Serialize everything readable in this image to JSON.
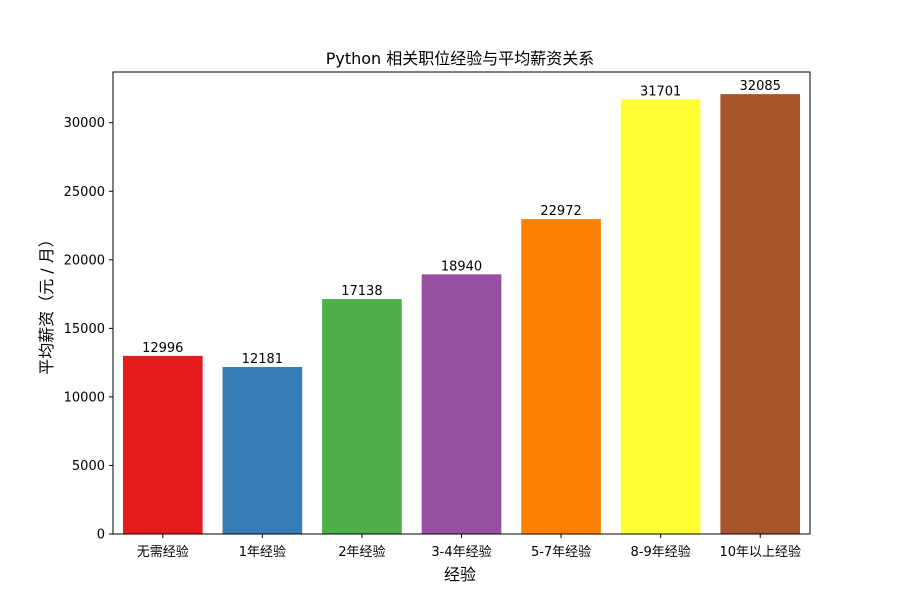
{
  "chart_data": {
    "type": "bar",
    "title": "Python 相关职位经验与平均薪资关系",
    "xlabel": "经验",
    "ylabel": "平均薪资（元 / 月）",
    "categories": [
      "无需经验",
      "1年经验",
      "2年经验",
      "3-4年经验",
      "5-7年经验",
      "8-9年经验",
      "10年以上经验"
    ],
    "values": [
      12996,
      12181,
      17138,
      18940,
      22972,
      31701,
      32085
    ],
    "colors": [
      "#e41a1c",
      "#377eb8",
      "#4daf4a",
      "#984ea3",
      "#ff7f00",
      "#ffff33",
      "#a65628"
    ],
    "ylim": [
      0,
      33700
    ],
    "yticks": [
      0,
      5000,
      10000,
      15000,
      20000,
      25000,
      30000
    ],
    "grid": false,
    "legend": false
  }
}
